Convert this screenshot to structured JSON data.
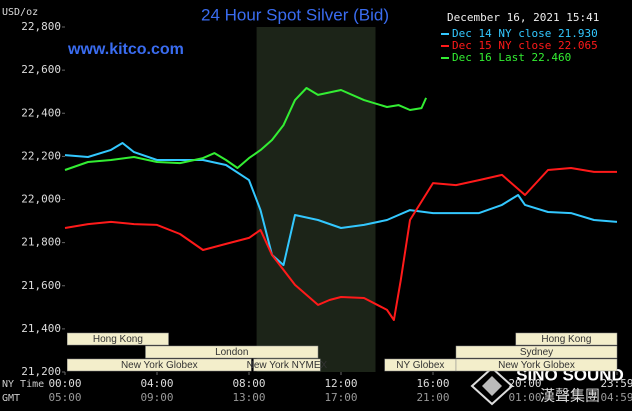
{
  "chart_data": {
    "type": "line",
    "title": "24 Hour Spot Silver (Bid)",
    "y_unit": "USD/oz",
    "timestamp": "December 16, 2021 15:41",
    "source": "www.kitco.com",
    "watermark": [
      "SINO SOUND",
      "漢聲集團"
    ],
    "x_row_labels": [
      "NY Time",
      "GMT"
    ],
    "xlim": [
      0,
      24
    ],
    "xticks": [
      {
        "value": 0,
        "label": "00:00"
      },
      {
        "value": 4,
        "label": "04:00"
      },
      {
        "value": 8,
        "label": "08:00"
      },
      {
        "value": 12,
        "label": "12:00"
      },
      {
        "value": 16,
        "label": "16:00"
      },
      {
        "value": 20,
        "label": "20:00"
      },
      {
        "value": 24,
        "label": "23:59"
      }
    ],
    "xticks_gmt": [
      "05:00",
      "09:00",
      "13:00",
      "17:00",
      "21:00",
      "01:00",
      "04:59"
    ],
    "ylim": [
      21200,
      22800
    ],
    "yticks": [
      {
        "value": 21200,
        "label": "21,200"
      },
      {
        "value": 21400,
        "label": "21,400"
      },
      {
        "value": 21600,
        "label": "21,600"
      },
      {
        "value": 21800,
        "label": "21,800"
      },
      {
        "value": 22000,
        "label": "22,000"
      },
      {
        "value": 22200,
        "label": "22,200"
      },
      {
        "value": 22400,
        "label": "22,400"
      },
      {
        "value": 22600,
        "label": "22,600"
      },
      {
        "value": 22800,
        "label": "22,800"
      }
    ],
    "grid": false,
    "shade": [
      8.33,
      13.5
    ],
    "sessions": [
      [
        {
          "label": "Hong Kong",
          "start": 0.1,
          "end": 4.5
        },
        {
          "label": "Hong Kong",
          "start": 19.6,
          "end": 24
        }
      ],
      [
        {
          "label": "London",
          "start": 3.5,
          "end": 11
        },
        {
          "label": "Sydney",
          "start": 17,
          "end": 24
        }
      ],
      [
        {
          "label": "New York Globex",
          "start": 0.1,
          "end": 8.1
        },
        {
          "label": "New York NYMEX",
          "start": 8.2,
          "end": 11.1
        },
        {
          "label": "NY Globex",
          "start": 13.9,
          "end": 17
        },
        {
          "label": "New York Globex",
          "start": 17,
          "end": 24
        }
      ]
    ],
    "series": [
      {
        "name": "Dec 14 NY close 21.930",
        "color": "#33c8ff",
        "x": [
          0,
          1,
          2,
          2.5,
          3,
          4,
          5,
          6,
          7,
          8,
          8.5,
          9,
          9.5,
          10,
          11,
          12,
          13,
          14,
          15,
          16,
          17,
          18,
          19,
          19.7,
          20,
          21,
          22,
          23,
          24
        ],
        "values": [
          22206,
          22197,
          22230,
          22262,
          22220,
          22183,
          22183,
          22183,
          22160,
          22090,
          21951,
          21743,
          21696,
          21928,
          21905,
          21868,
          21882,
          21905,
          21951,
          21937,
          21937,
          21937,
          21975,
          22021,
          21975,
          21942,
          21937,
          21905,
          21896
        ]
      },
      {
        "name": "Dec 15 NY close 22.065",
        "color": "#ff1a1a",
        "x": [
          0,
          1,
          2,
          3,
          4,
          5,
          6,
          7,
          8,
          8.5,
          9,
          10,
          11,
          11.5,
          12,
          13,
          14,
          14.3,
          14.6,
          15,
          16,
          17,
          18,
          19,
          20,
          21,
          22,
          23,
          24
        ],
        "values": [
          21868,
          21886,
          21896,
          21886,
          21882,
          21840,
          21766,
          21794,
          21822,
          21859,
          21743,
          21604,
          21511,
          21534,
          21548,
          21543,
          21488,
          21441,
          21627,
          21905,
          22076,
          22067,
          22090,
          22114,
          22021,
          22137,
          22146,
          22128,
          22128
        ]
      },
      {
        "name": "Dec 16 Last 22.460",
        "color": "#33ee33",
        "x": [
          0,
          1,
          2,
          3,
          4,
          5,
          6,
          6.5,
          7,
          7.5,
          8,
          8.5,
          9,
          9.5,
          10,
          10.5,
          11,
          12,
          13,
          14,
          14.5,
          15,
          15.5,
          15.7
        ],
        "values": [
          22137,
          22174,
          22183,
          22197,
          22174,
          22169,
          22192,
          22215,
          22183,
          22146,
          22192,
          22229,
          22276,
          22345,
          22461,
          22517,
          22485,
          22508,
          22461,
          22429,
          22438,
          22415,
          22424,
          22471
        ]
      }
    ]
  }
}
